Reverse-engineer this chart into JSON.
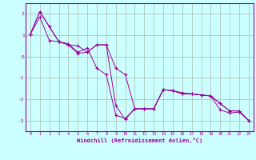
{
  "xlabel": "Windchill (Refroidissement éolien,°C)",
  "bg_color": "#ccffff",
  "grid_color": "#aabbaa",
  "line_color": "#990099",
  "xlim": [
    -0.5,
    23.5
  ],
  "ylim": [
    -3.5,
    2.5
  ],
  "xticks": [
    0,
    1,
    2,
    3,
    4,
    5,
    6,
    7,
    8,
    9,
    10,
    11,
    12,
    13,
    14,
    15,
    16,
    17,
    18,
    19,
    20,
    21,
    22,
    23
  ],
  "yticks": [
    -3,
    -2,
    -1,
    0,
    1,
    2
  ],
  "series": [
    [
      1.05,
      2.1,
      1.4,
      0.7,
      0.6,
      0.2,
      0.4,
      -0.55,
      -0.85,
      -2.75,
      -2.9,
      -2.45,
      -2.45,
      -2.45,
      -1.55,
      -1.6,
      -1.7,
      -1.75,
      -1.8,
      -1.85,
      -2.5,
      -2.65,
      -2.6,
      -3.0
    ],
    [
      1.05,
      2.1,
      1.4,
      0.7,
      0.55,
      0.5,
      0.2,
      0.55,
      0.55,
      -2.3,
      -2.95,
      -2.45,
      -2.45,
      -2.45,
      -1.55,
      -1.6,
      -1.75,
      -1.75,
      -1.8,
      -1.85,
      -2.2,
      -2.55,
      -2.55,
      -3.0
    ],
    [
      1.05,
      1.85,
      0.75,
      0.7,
      0.55,
      0.15,
      0.2,
      0.55,
      0.55,
      -0.55,
      -0.85,
      -2.45,
      -2.45,
      -2.45,
      -1.55,
      -1.6,
      -1.75,
      -1.75,
      -1.8,
      -1.85,
      -2.2,
      -2.55,
      -2.55,
      -3.0
    ]
  ]
}
